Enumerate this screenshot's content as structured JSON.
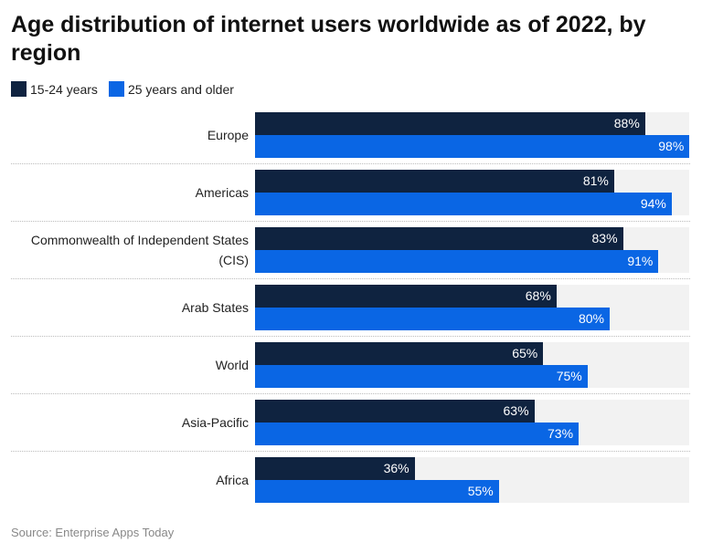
{
  "chart_data": {
    "type": "bar",
    "orientation": "horizontal",
    "title": "Age distribution of internet users worldwide as of 2022, by region",
    "categories": [
      "Europe",
      "Americas",
      "Commonwealth of Independent States (CIS)",
      "Arab States",
      "World",
      "Asia-Pacific",
      "Africa"
    ],
    "series": [
      {
        "name": "15-24 years",
        "color": "#0f2340",
        "values": [
          88,
          81,
          83,
          68,
          65,
          63,
          36
        ]
      },
      {
        "name": "25 years and older",
        "color": "#0a66e4",
        "values": [
          98,
          94,
          91,
          80,
          75,
          73,
          55
        ]
      }
    ],
    "value_suffix": "%",
    "xlim": [
      0,
      100
    ],
    "legend_position": "top-left",
    "grid": false
  },
  "source": "Source: Enterprise Apps Today"
}
